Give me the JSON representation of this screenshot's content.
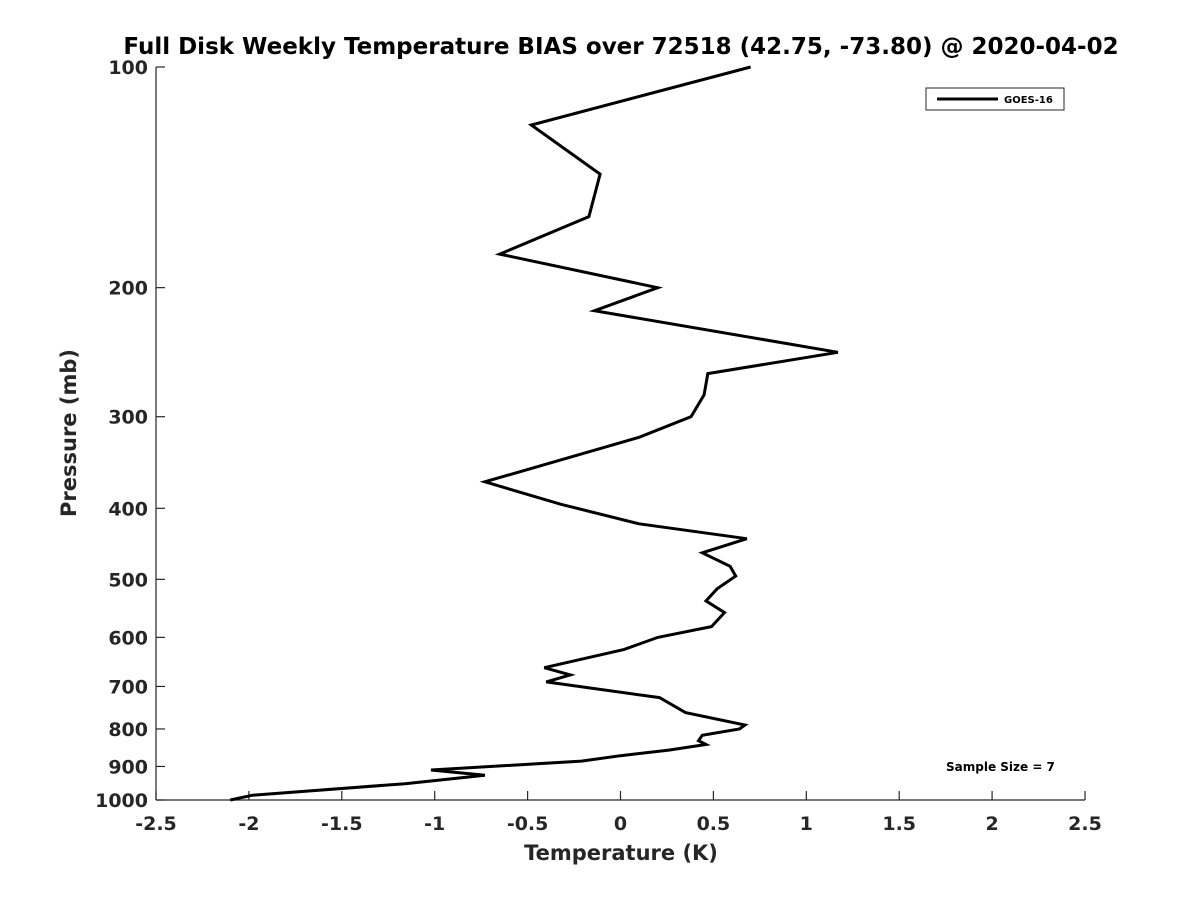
{
  "chart_data": {
    "type": "line",
    "title": "Full Disk Weekly Temperature BIAS over 72518 (42.75, -73.80) @ 2020-04-02",
    "xlabel": "Temperature (K)",
    "ylabel": "Pressure (mb)",
    "xlim": [
      -2.5,
      2.5
    ],
    "ylim": [
      100,
      1000
    ],
    "y_scale": "log",
    "y_reversed": true,
    "grid": false,
    "legend_position": "top-right",
    "xticks": [
      "-2.5",
      "-2",
      "-1.5",
      "-1",
      "-0.5",
      "0",
      "0.5",
      "1",
      "1.5",
      "2",
      "2.5"
    ],
    "yticks": [
      "100",
      "200",
      "300",
      "400",
      "500",
      "600",
      "700",
      "800",
      "900",
      "1000"
    ],
    "series": [
      {
        "name": "GOES-16",
        "color": "#000000",
        "x": [
          0.7,
          -0.48,
          -0.11,
          -0.17,
          -0.65,
          0.2,
          -0.14,
          1.17,
          0.47,
          0.45,
          0.38,
          0.1,
          -0.73,
          -0.32,
          0.1,
          0.68,
          0.44,
          0.59,
          0.62,
          0.52,
          0.46,
          0.56,
          0.49,
          0.2,
          0.02,
          -0.41,
          -0.27,
          -0.4,
          0.21,
          0.35,
          0.67,
          0.64,
          0.44,
          0.42,
          0.46,
          0.26,
          0.0,
          -0.21,
          -1.02,
          -0.73,
          -1.16,
          -1.98,
          -2.1
        ],
        "y": [
          100,
          120,
          140,
          160,
          180,
          200,
          215,
          245,
          262,
          280,
          300,
          320,
          368,
          395,
          420,
          440,
          460,
          480,
          495,
          515,
          535,
          555,
          580,
          600,
          623,
          660,
          675,
          690,
          725,
          760,
          790,
          800,
          816,
          830,
          840,
          855,
          870,
          885,
          910,
          925,
          950,
          985,
          1000
        ]
      }
    ],
    "annotations": [
      "Sample Size = 7"
    ]
  },
  "legend": {
    "label": "GOES-16"
  },
  "annotation": {
    "text": "Sample Size = 7"
  }
}
